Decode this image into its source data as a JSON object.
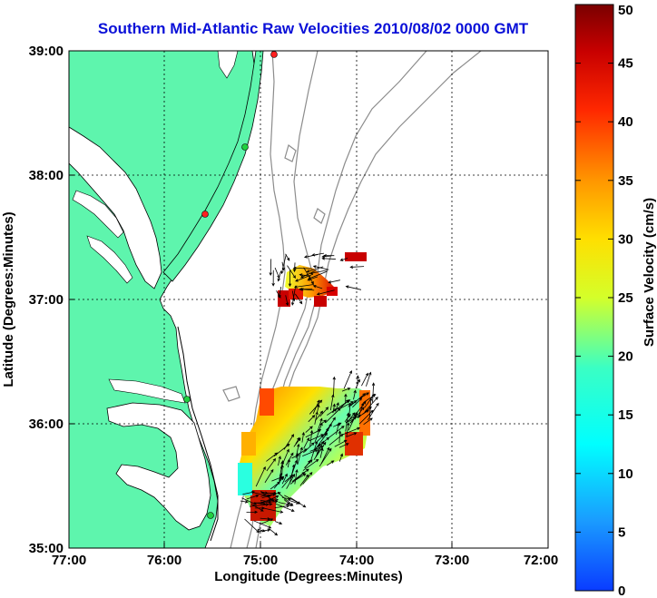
{
  "title": "Southern Mid-Atlantic Raw Velocities 2010/08/02 0000 GMT",
  "axes": {
    "xlabel": "Longitude (Degrees:Minutes)",
    "ylabel": "Latitude (Degrees:Minutes)",
    "x_ticks": [
      "77:00",
      "76:00",
      "75:00",
      "74:00",
      "73:00",
      "72:00"
    ],
    "y_ticks": [
      "39:00",
      "38:00",
      "37:00",
      "36:00",
      "35:00"
    ]
  },
  "colorbar": {
    "label": "Surface Velocity (cm/s)",
    "ticks": [
      "0",
      "5",
      "10",
      "15",
      "20",
      "25",
      "30",
      "35",
      "40",
      "45",
      "50"
    ],
    "range": [
      0,
      50
    ]
  },
  "map_extent": {
    "lon_range": [
      -77,
      -72
    ],
    "lat_range": [
      35,
      39
    ]
  },
  "colors": {
    "land": "#5ef5ad",
    "coast": "#000000",
    "bathymetry": "#8c8c8c",
    "title": "#0a10d8"
  }
}
